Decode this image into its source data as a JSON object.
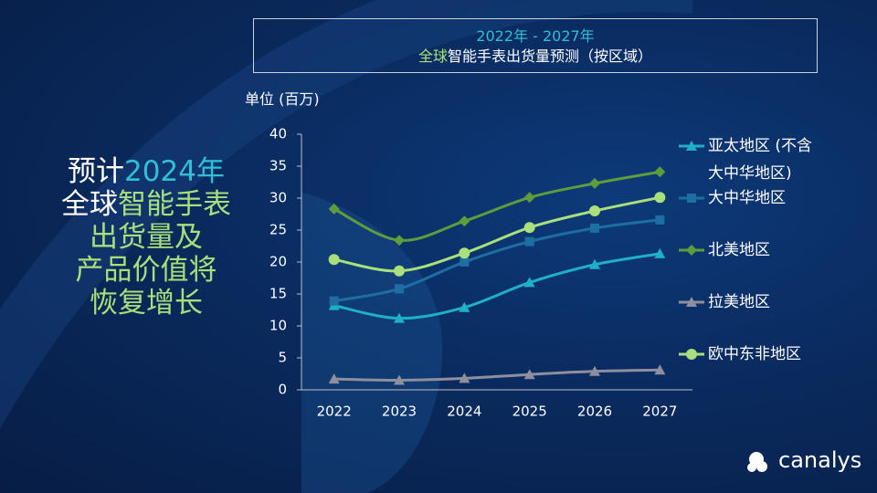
{
  "headline": [
    [
      "预计",
      "2024年"
    ],
    [
      "全球",
      "智能手表"
    ],
    [
      "出货量及"
    ],
    [
      "产品价值将"
    ],
    [
      "恢复增长"
    ]
  ],
  "brand": "canalys",
  "chart_data": {
    "type": "line",
    "title": "2022年 - 2027年",
    "subtitle": [
      "全球",
      "智能手表出货量预测（按区域）"
    ],
    "y_axis_label": "单位 (百万)",
    "categories": [
      "2022",
      "2023",
      "2024",
      "2025",
      "2026",
      "2027"
    ],
    "series": [
      {
        "name": "亚太地区 (不含大中华地区)",
        "color": "#1fb0c8",
        "marker": "triangle",
        "values": [
          13.2,
          11.2,
          12.9,
          16.8,
          19.6,
          21.3
        ]
      },
      {
        "name": "大中华地区",
        "color": "#1d6fa3",
        "marker": "square",
        "values": [
          13.9,
          15.8,
          20.0,
          23.2,
          25.3,
          26.6
        ]
      },
      {
        "name": "北美地区",
        "color": "#5e9c3c",
        "marker": "diamond",
        "values": [
          28.3,
          23.4,
          26.4,
          30.1,
          32.3,
          34.1
        ]
      },
      {
        "name": "拉美地区",
        "color": "#8e8f9e",
        "marker": "triangle",
        "values": [
          1.7,
          1.5,
          1.8,
          2.4,
          2.9,
          3.1
        ]
      },
      {
        "name": "欧中东非地区",
        "color": "#a9e07c",
        "marker": "circle",
        "values": [
          20.4,
          18.6,
          21.4,
          25.4,
          28.0,
          30.1
        ]
      }
    ],
    "ylim": [
      0,
      40
    ],
    "yticks": [
      0,
      5,
      10,
      15,
      20,
      25,
      30,
      35,
      40
    ],
    "grid": false
  }
}
